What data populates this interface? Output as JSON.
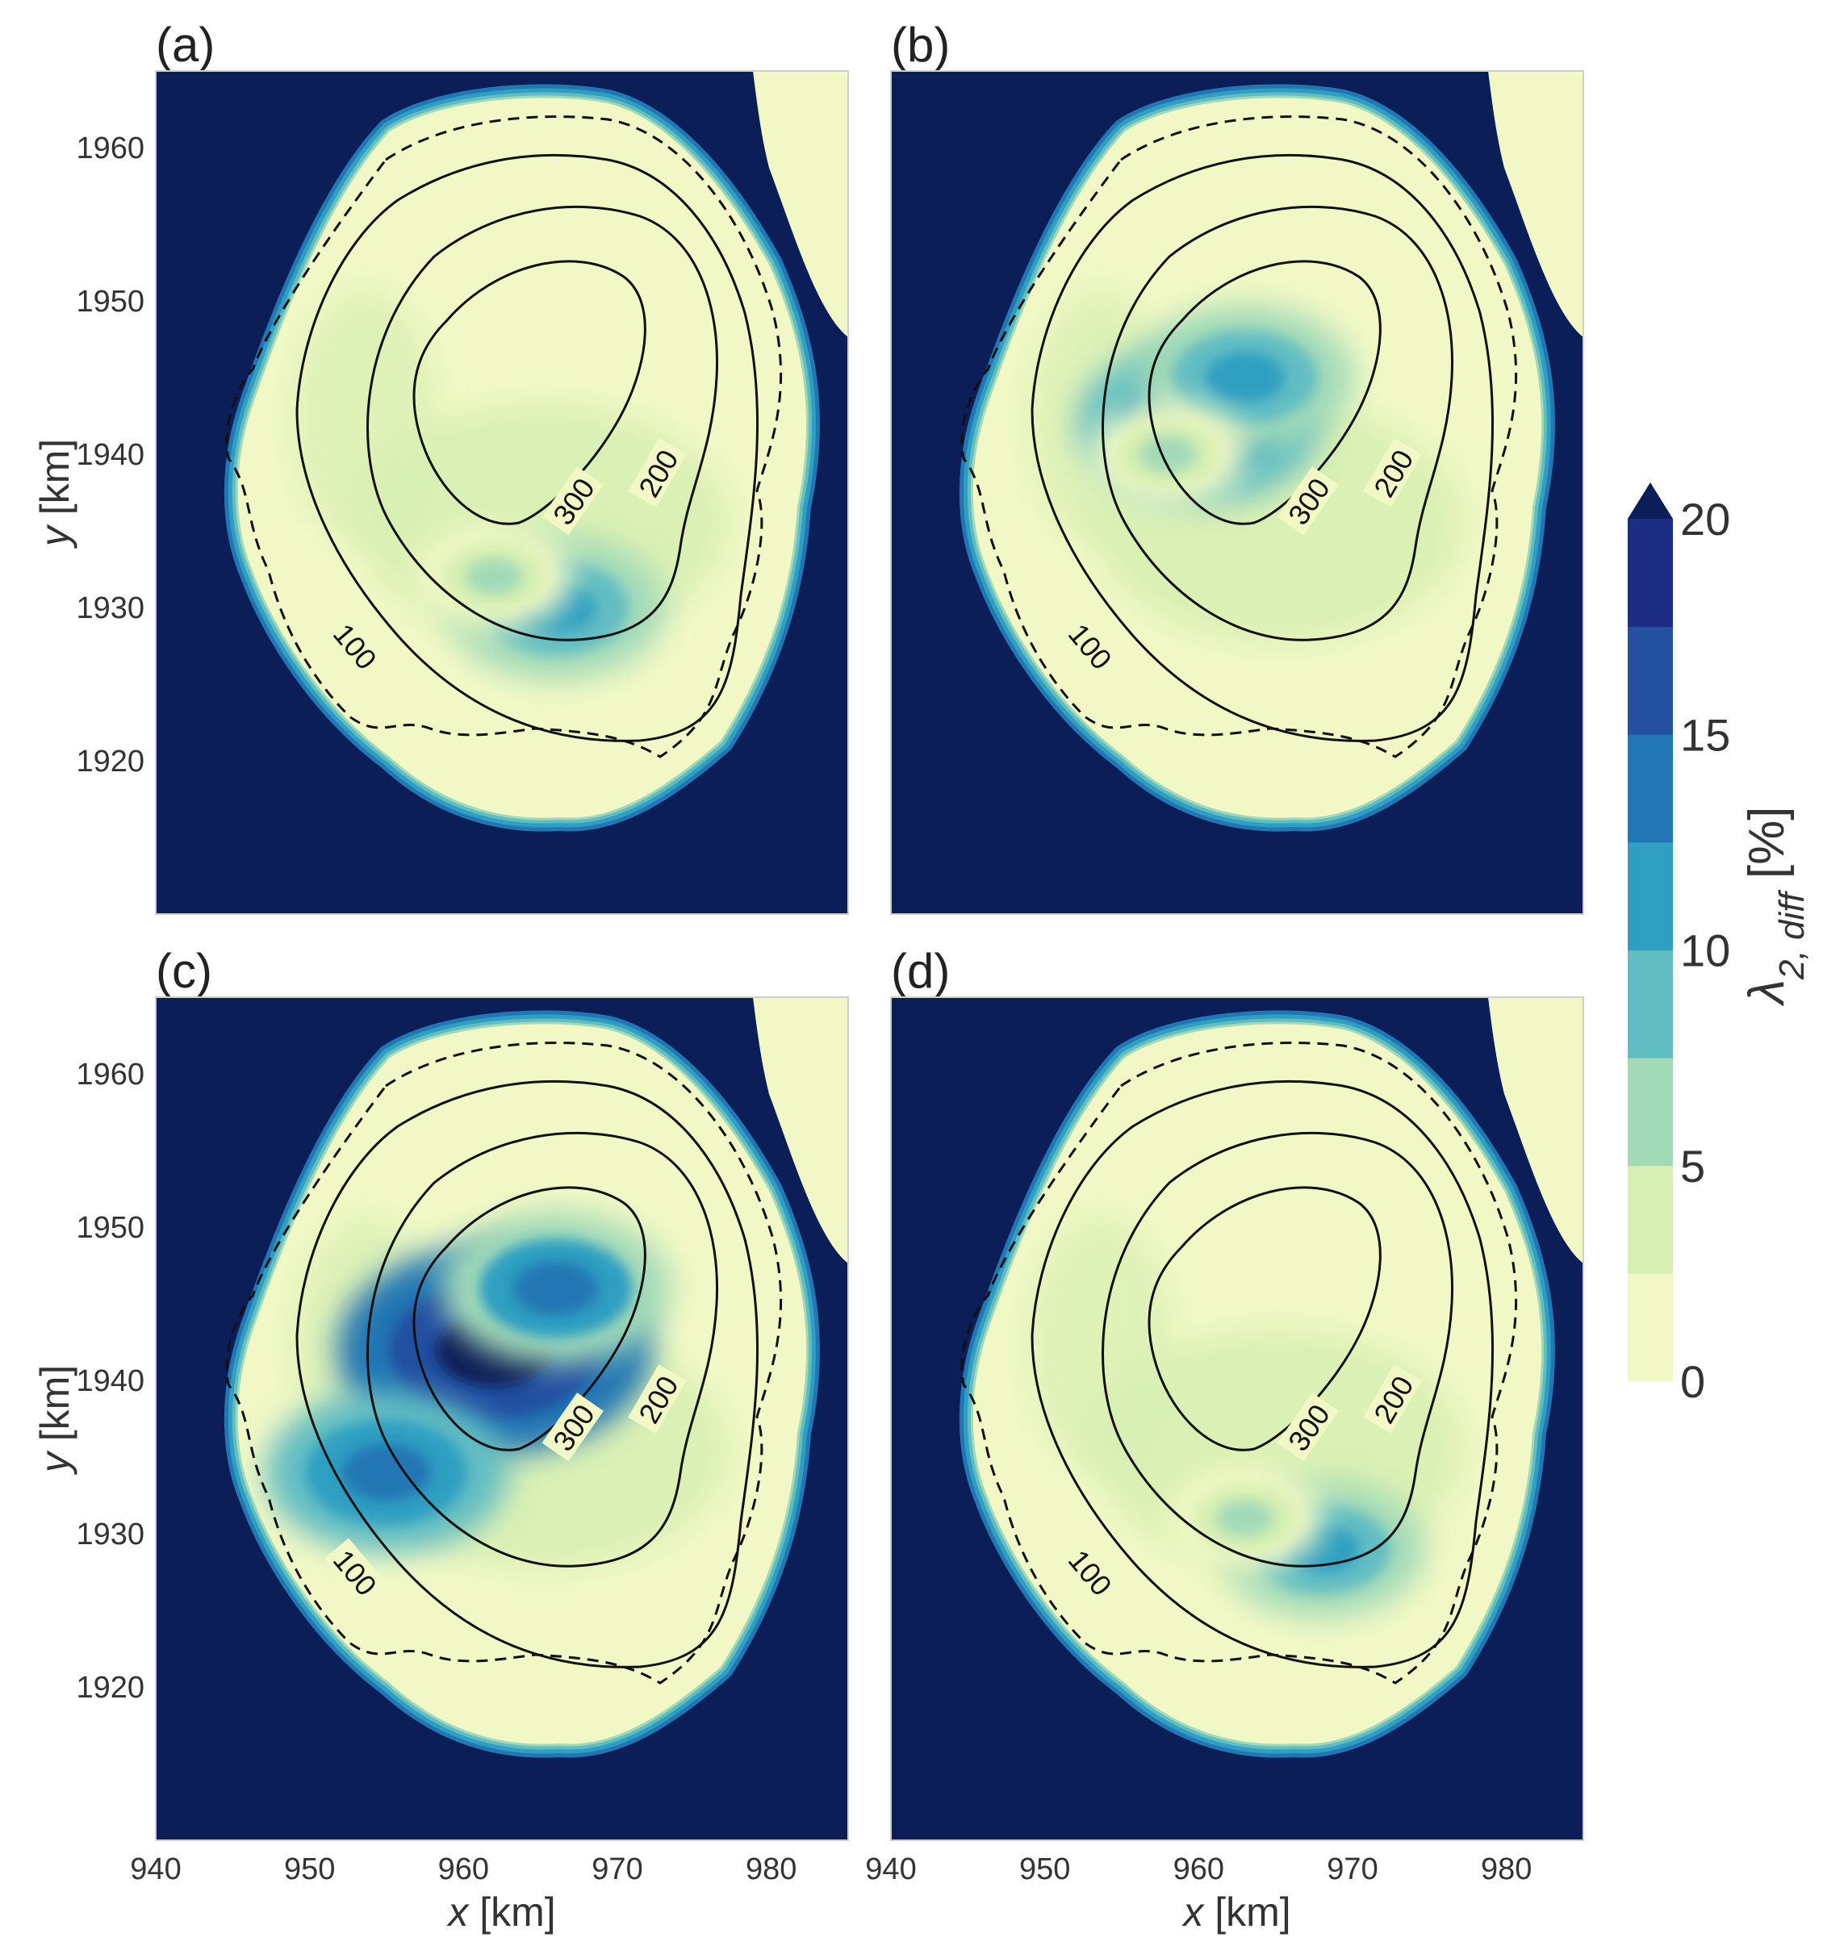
{
  "chart_data": [
    {
      "panel": "(a)",
      "type": "heatmap",
      "contour_labels": [
        "300",
        "200",
        "100"
      ],
      "hotspots": [
        {
          "x": 966,
          "y": 1930,
          "level": 12
        },
        {
          "x": 962,
          "y": 1932,
          "level": 7
        }
      ]
    },
    {
      "panel": "(b)",
      "type": "heatmap",
      "contour_labels": [
        "300",
        "200",
        "100"
      ],
      "hotspots": [
        {
          "x": 960,
          "y": 1942,
          "level": 14
        },
        {
          "x": 963,
          "y": 1945,
          "level": 12
        },
        {
          "x": 958,
          "y": 1940,
          "level": 7
        }
      ]
    },
    {
      "panel": "(c)",
      "type": "heatmap",
      "contour_labels": [
        "300",
        "200",
        "100"
      ],
      "hotspots": [
        {
          "x": 962,
          "y": 1942,
          "level": 20
        },
        {
          "x": 955,
          "y": 1934,
          "level": 14
        },
        {
          "x": 966,
          "y": 1946,
          "level": 13
        }
      ]
    },
    {
      "panel": "(d)",
      "type": "heatmap",
      "contour_labels": [
        "300",
        "200",
        "100"
      ],
      "hotspots": [
        {
          "x": 968,
          "y": 1929,
          "level": 11
        },
        {
          "x": 963,
          "y": 1931,
          "level": 7
        }
      ]
    }
  ],
  "axes": {
    "x_label_italic": "x",
    "x_label_rest": " [km]",
    "y_label_italic": "y",
    "y_label_rest": " [km]",
    "x_ticks": [
      "940",
      "950",
      "960",
      "970",
      "980"
    ],
    "x_tick_values": [
      940,
      950,
      960,
      970,
      980
    ],
    "y_ticks": [
      "1960",
      "1950",
      "1940",
      "1930",
      "1920"
    ],
    "y_tick_values": [
      1960,
      1950,
      1940,
      1930,
      1920
    ],
    "xlim": [
      940,
      985
    ],
    "ylim": [
      1910,
      1965
    ]
  },
  "colorbar": {
    "label_symbol": "λ",
    "label_subscript": "2, diff",
    "label_unit": " [%]",
    "ticks": [
      "0",
      "5",
      "10",
      "15",
      "20"
    ],
    "levels": [
      0,
      2.5,
      5,
      7.5,
      10,
      12.5,
      15,
      17.5,
      20
    ],
    "colors": [
      "#f1f8c5",
      "#d7efb2",
      "#a2dab8",
      "#62bdc2",
      "#2f9fc1",
      "#2176b3",
      "#2450a1",
      "#1d2d84",
      "#0b1e57"
    ],
    "extend": "max"
  }
}
